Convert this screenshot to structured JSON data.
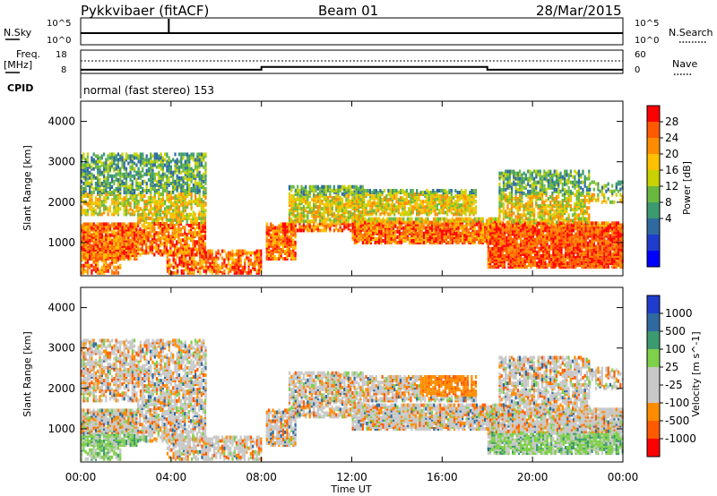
{
  "header": {
    "title": "Pykkvibaer (fitACF)",
    "beam": "Beam 01",
    "date": "28/Mar/2015"
  },
  "top_panels": {
    "nsky_label": "N.Sky",
    "nsearch_label": "N.Search",
    "nsky_ticks": [
      "10^5",
      "10^0"
    ],
    "nsearch_ticks": [
      "10^5",
      "10^0"
    ],
    "freq_label_1": "Freq.",
    "freq_label_2": "[MHz]",
    "freq_ticks": [
      "18",
      "8"
    ],
    "nave_label": "Nave",
    "nave_ticks": [
      "60",
      "0"
    ],
    "cpid_label": "CPID",
    "cpid_text": "normal (fast stereo) 153"
  },
  "chart_data": [
    {
      "type": "heatmap",
      "name": "power",
      "ylabel": "Slant Range [km]",
      "ylim": [
        180,
        4500
      ],
      "y_ticks": [
        "1000",
        "2000",
        "3000",
        "4000"
      ],
      "xlim": [
        "00:00",
        "24:00"
      ],
      "colorbar": {
        "label": "Power [dB]",
        "ticks": [
          "28",
          "24",
          "20",
          "16",
          "12",
          "8",
          "4"
        ],
        "colors": [
          "#ff0000",
          "#ff5a00",
          "#ff8c00",
          "#ffc000",
          "#c8d200",
          "#6ab840",
          "#3c9a70",
          "#2e6aa0",
          "#1f3ccc",
          "#0000ff"
        ]
      }
    },
    {
      "type": "heatmap",
      "name": "velocity",
      "ylabel": "Slant Range [km]",
      "ylim": [
        180,
        4500
      ],
      "y_ticks": [
        "1000",
        "2000",
        "3000",
        "4000"
      ],
      "xlim": [
        "00:00",
        "24:00"
      ],
      "colorbar": {
        "label": "Velocity [m s^-1]",
        "ticks": [
          "1000",
          "500",
          "100",
          "25",
          "-25",
          "-100",
          "-500",
          "-1000"
        ],
        "colors": [
          "#1f3ccc",
          "#2e6aa0",
          "#3c9a70",
          "#7fd04a",
          "#c8c8c8",
          "#c8c8c8",
          "#ff8c00",
          "#ff5a00",
          "#ff0000"
        ]
      }
    }
  ],
  "x_axis": {
    "label": "Time UT",
    "ticks": [
      "00:00",
      "04:00",
      "08:00",
      "12:00",
      "16:00",
      "20:00",
      "00:00"
    ]
  },
  "freq_series": {
    "segments": [
      {
        "start": "00:00",
        "end": "08:00",
        "mhz": 9.6
      },
      {
        "start": "08:00",
        "end": "18:00",
        "mhz": 10.8
      },
      {
        "start": "18:00",
        "end": "24:00",
        "mhz": 9.6
      }
    ]
  },
  "nsky_level": 0.5,
  "nave_level_dotted": 0.25
}
